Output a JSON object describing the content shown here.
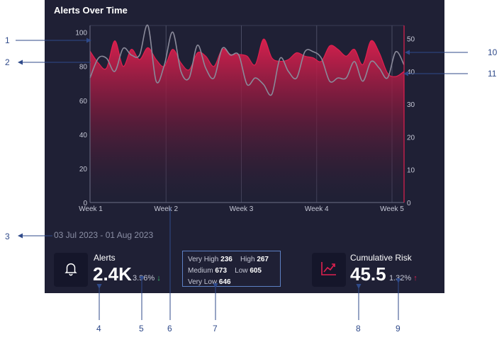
{
  "widget": {
    "title": "Alerts Over Time",
    "date_range": "03 Jul 2023 - 01 Aug 2023"
  },
  "kpis": {
    "alerts": {
      "label": "Alerts",
      "value": "2.4K",
      "change": "3.96%",
      "trend": "down",
      "icon": "bell-icon"
    },
    "risk": {
      "label": "Cumulative Risk",
      "value": "45.5",
      "change": "1.32%",
      "trend": "up",
      "icon": "trend-up-icon"
    }
  },
  "severity": {
    "very_high": {
      "label": "Very High",
      "value": "236"
    },
    "high": {
      "label": "High",
      "value": "267"
    },
    "medium": {
      "label": "Medium",
      "value": "673"
    },
    "low": {
      "label": "Low",
      "value": "605"
    },
    "very_low": {
      "label": "Very Low",
      "value": "646"
    }
  },
  "callouts": [
    "1",
    "2",
    "3",
    "4",
    "5",
    "6",
    "7",
    "8",
    "9",
    "10",
    "11"
  ],
  "colors": {
    "panel_bg": "#1f2035",
    "alerts_area": "#e0204f",
    "risk_line": "#8a8a9a",
    "callout": "#2f4a8a",
    "down": "#36c26b",
    "up": "#e0204f"
  },
  "chart_data": {
    "type": "area",
    "title": "Alerts Over Time",
    "x_ticks": [
      "Week 1",
      "Week 2",
      "Week 3",
      "Week 4",
      "Week 5"
    ],
    "left_axis": {
      "ticks": [
        "0",
        "20",
        "40",
        "60",
        "80",
        "100"
      ],
      "ylim": [
        0,
        104
      ]
    },
    "right_axis": {
      "ticks": [
        "0",
        "10",
        "20",
        "30",
        "40",
        "50"
      ],
      "ylim": [
        0,
        54
      ]
    },
    "grid": true,
    "series": [
      {
        "axis": "left",
        "style": "area",
        "values": [
          89,
          82,
          79,
          95,
          80,
          90,
          84,
          91,
          84,
          80,
          90,
          82,
          78,
          88,
          86,
          80,
          90,
          87,
          87,
          86,
          81,
          96,
          85,
          83,
          84,
          88,
          86,
          85,
          83,
          92,
          90,
          86,
          90,
          81,
          95,
          88,
          76,
          74,
          77
        ]
      },
      {
        "axis": "right",
        "style": "line",
        "values": [
          38,
          44,
          44,
          40,
          47,
          45,
          45,
          54,
          37,
          42,
          52,
          40,
          38,
          48,
          41,
          38,
          47,
          45,
          45,
          36,
          38,
          36,
          33,
          44,
          40,
          38,
          46,
          46,
          44,
          37,
          38,
          38,
          43,
          37,
          43,
          41,
          38,
          46,
          42
        ]
      }
    ]
  }
}
